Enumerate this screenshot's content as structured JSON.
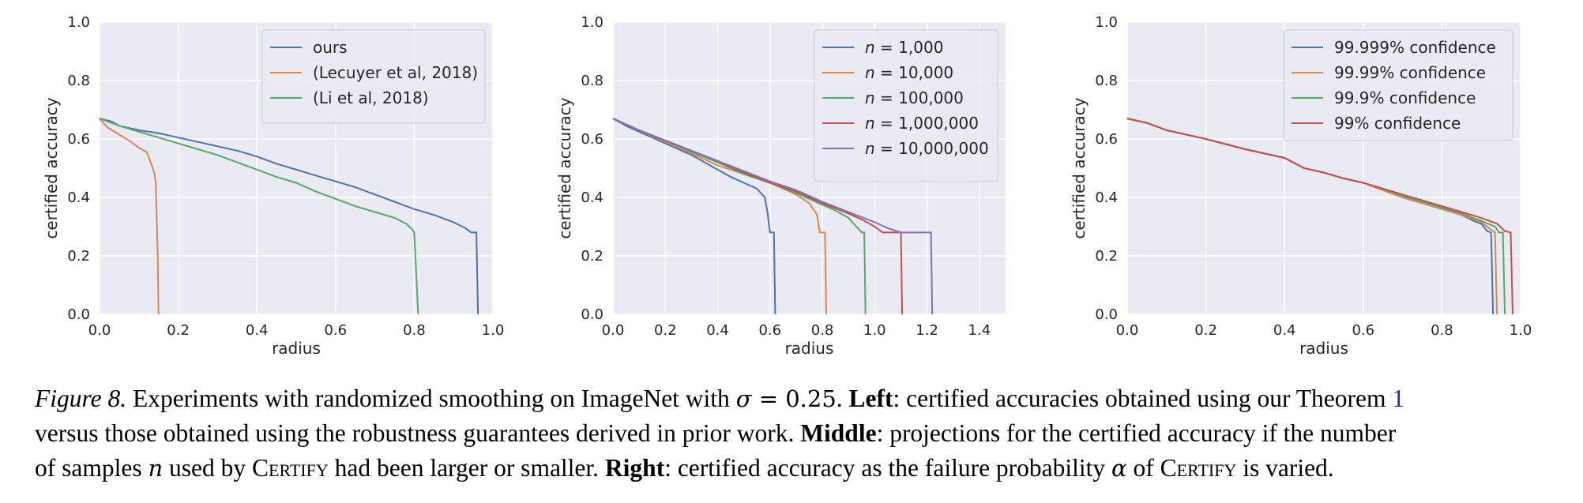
{
  "chart_data": [
    {
      "type": "line",
      "xlabel": "radius",
      "ylabel": "certified accuracy",
      "xlim": [
        0,
        1.0
      ],
      "ylim": [
        0,
        1.0
      ],
      "xticks": [
        0.0,
        0.2,
        0.4,
        0.6,
        0.8,
        1.0
      ],
      "xtick_labels": [
        "0.0",
        "0.2",
        "0.4",
        "0.6",
        "0.8",
        "1.0"
      ],
      "yticks": [
        0.0,
        0.2,
        0.4,
        0.6,
        0.8,
        1.0
      ],
      "ytick_labels": [
        "0.0",
        "0.2",
        "0.4",
        "0.6",
        "0.8",
        "1.0"
      ],
      "grid": true,
      "legend_position": "top-right",
      "series": [
        {
          "name": "ours",
          "color": "#4c72b0",
          "points": [
            [
              0,
              0.67
            ],
            [
              0.03,
              0.66
            ],
            [
              0.05,
              0.645
            ],
            [
              0.1,
              0.63
            ],
            [
              0.15,
              0.62
            ],
            [
              0.2,
              0.605
            ],
            [
              0.25,
              0.59
            ],
            [
              0.3,
              0.575
            ],
            [
              0.35,
              0.56
            ],
            [
              0.4,
              0.54
            ],
            [
              0.45,
              0.515
            ],
            [
              0.5,
              0.495
            ],
            [
              0.55,
              0.475
            ],
            [
              0.6,
              0.455
            ],
            [
              0.65,
              0.435
            ],
            [
              0.7,
              0.41
            ],
            [
              0.75,
              0.385
            ],
            [
              0.8,
              0.36
            ],
            [
              0.85,
              0.34
            ],
            [
              0.9,
              0.315
            ],
            [
              0.93,
              0.295
            ],
            [
              0.945,
              0.28
            ],
            [
              0.958,
              0.28
            ],
            [
              0.962,
              0.0
            ]
          ]
        },
        {
          "name": "(Lecuyer et al, 2018)",
          "color": "#dd8452",
          "points": [
            [
              0,
              0.67
            ],
            [
              0.02,
              0.64
            ],
            [
              0.05,
              0.615
            ],
            [
              0.08,
              0.59
            ],
            [
              0.1,
              0.57
            ],
            [
              0.12,
              0.555
            ],
            [
              0.13,
              0.52
            ],
            [
              0.14,
              0.48
            ],
            [
              0.143,
              0.45
            ],
            [
              0.148,
              0.2
            ],
            [
              0.15,
              0.0
            ]
          ]
        },
        {
          "name": "(Li et al, 2018)",
          "color": "#55a868",
          "points": [
            [
              0,
              0.67
            ],
            [
              0.05,
              0.645
            ],
            [
              0.1,
              0.625
            ],
            [
              0.15,
              0.605
            ],
            [
              0.2,
              0.585
            ],
            [
              0.25,
              0.565
            ],
            [
              0.3,
              0.545
            ],
            [
              0.35,
              0.52
            ],
            [
              0.4,
              0.495
            ],
            [
              0.45,
              0.47
            ],
            [
              0.5,
              0.45
            ],
            [
              0.55,
              0.42
            ],
            [
              0.6,
              0.395
            ],
            [
              0.65,
              0.37
            ],
            [
              0.7,
              0.35
            ],
            [
              0.75,
              0.33
            ],
            [
              0.78,
              0.31
            ],
            [
              0.795,
              0.29
            ],
            [
              0.8,
              0.28
            ],
            [
              0.81,
              0.0
            ]
          ]
        }
      ]
    },
    {
      "type": "line",
      "xlabel": "radius",
      "ylabel": "certified accuracy",
      "xlim": [
        0,
        1.5
      ],
      "ylim": [
        0,
        1.0
      ],
      "xticks": [
        0.0,
        0.2,
        0.4,
        0.6,
        0.8,
        1.0,
        1.2,
        1.4
      ],
      "xtick_labels": [
        "0.0",
        "0.2",
        "0.4",
        "0.6",
        "0.8",
        "1.0",
        "1.2",
        "1.4"
      ],
      "yticks": [
        0.0,
        0.2,
        0.4,
        0.6,
        0.8,
        1.0
      ],
      "ytick_labels": [
        "0.0",
        "0.2",
        "0.4",
        "0.6",
        "0.8",
        "1.0"
      ],
      "grid": true,
      "legend_position": "top-right",
      "series": [
        {
          "name_prefix": "n",
          "name_value": " = 1,000",
          "color": "#4c72b0",
          "points": [
            [
              0,
              0.67
            ],
            [
              0.05,
              0.645
            ],
            [
              0.1,
              0.625
            ],
            [
              0.15,
              0.605
            ],
            [
              0.2,
              0.585
            ],
            [
              0.25,
              0.565
            ],
            [
              0.3,
              0.545
            ],
            [
              0.35,
              0.52
            ],
            [
              0.4,
              0.495
            ],
            [
              0.45,
              0.47
            ],
            [
              0.5,
              0.45
            ],
            [
              0.55,
              0.43
            ],
            [
              0.58,
              0.4
            ],
            [
              0.59,
              0.35
            ],
            [
              0.6,
              0.28
            ],
            [
              0.615,
              0.28
            ],
            [
              0.62,
              0.0
            ]
          ]
        },
        {
          "name_prefix": "n",
          "name_value": " = 10,000",
          "color": "#dd8452",
          "points": [
            [
              0,
              0.67
            ],
            [
              0.1,
              0.63
            ],
            [
              0.2,
              0.59
            ],
            [
              0.3,
              0.55
            ],
            [
              0.4,
              0.51
            ],
            [
              0.5,
              0.48
            ],
            [
              0.6,
              0.45
            ],
            [
              0.65,
              0.43
            ],
            [
              0.7,
              0.41
            ],
            [
              0.75,
              0.38
            ],
            [
              0.78,
              0.34
            ],
            [
              0.79,
              0.28
            ],
            [
              0.81,
              0.28
            ],
            [
              0.815,
              0.0
            ]
          ]
        },
        {
          "name_prefix": "n",
          "name_value": " = 100,000",
          "color": "#55a868",
          "points": [
            [
              0,
              0.67
            ],
            [
              0.1,
              0.63
            ],
            [
              0.2,
              0.595
            ],
            [
              0.3,
              0.555
            ],
            [
              0.4,
              0.52
            ],
            [
              0.5,
              0.48
            ],
            [
              0.6,
              0.45
            ],
            [
              0.7,
              0.415
            ],
            [
              0.8,
              0.375
            ],
            [
              0.85,
              0.355
            ],
            [
              0.9,
              0.33
            ],
            [
              0.93,
              0.3
            ],
            [
              0.95,
              0.28
            ],
            [
              0.96,
              0.28
            ],
            [
              0.965,
              0.0
            ]
          ]
        },
        {
          "name_prefix": "n",
          "name_value": " = 1,000,000",
          "color": "#c44e52",
          "points": [
            [
              0,
              0.67
            ],
            [
              0.1,
              0.63
            ],
            [
              0.2,
              0.595
            ],
            [
              0.3,
              0.56
            ],
            [
              0.4,
              0.525
            ],
            [
              0.5,
              0.485
            ],
            [
              0.6,
              0.45
            ],
            [
              0.7,
              0.42
            ],
            [
              0.8,
              0.38
            ],
            [
              0.9,
              0.345
            ],
            [
              0.95,
              0.325
            ],
            [
              1.0,
              0.3
            ],
            [
              1.03,
              0.28
            ],
            [
              1.1,
              0.28
            ],
            [
              1.105,
              0.0
            ]
          ]
        },
        {
          "name_prefix": "n",
          "name_value": " = 10,000,000",
          "color": "#8172b3",
          "points": [
            [
              0,
              0.67
            ],
            [
              0.1,
              0.63
            ],
            [
              0.2,
              0.595
            ],
            [
              0.3,
              0.56
            ],
            [
              0.4,
              0.525
            ],
            [
              0.5,
              0.49
            ],
            [
              0.6,
              0.455
            ],
            [
              0.7,
              0.425
            ],
            [
              0.8,
              0.385
            ],
            [
              0.9,
              0.35
            ],
            [
              1.0,
              0.315
            ],
            [
              1.05,
              0.295
            ],
            [
              1.1,
              0.28
            ],
            [
              1.215,
              0.28
            ],
            [
              1.22,
              0.0
            ]
          ]
        }
      ]
    },
    {
      "type": "line",
      "xlabel": "radius",
      "ylabel": "certified accuracy",
      "xlim": [
        0,
        1.0
      ],
      "ylim": [
        0,
        1.0
      ],
      "xticks": [
        0.0,
        0.2,
        0.4,
        0.6,
        0.8,
        1.0
      ],
      "xtick_labels": [
        "0.0",
        "0.2",
        "0.4",
        "0.6",
        "0.8",
        "1.0"
      ],
      "yticks": [
        0.0,
        0.2,
        0.4,
        0.6,
        0.8,
        1.0
      ],
      "ytick_labels": [
        "0.0",
        "0.2",
        "0.4",
        "0.6",
        "0.8",
        "1.0"
      ],
      "grid": true,
      "legend_position": "top-right",
      "series": [
        {
          "name": "99.999% confidence",
          "color": "#4c72b0",
          "points": [
            [
              0,
              0.67
            ],
            [
              0.05,
              0.655
            ],
            [
              0.1,
              0.63
            ],
            [
              0.2,
              0.6
            ],
            [
              0.3,
              0.565
            ],
            [
              0.4,
              0.535
            ],
            [
              0.45,
              0.5
            ],
            [
              0.5,
              0.485
            ],
            [
              0.55,
              0.465
            ],
            [
              0.6,
              0.45
            ],
            [
              0.65,
              0.425
            ],
            [
              0.7,
              0.4
            ],
            [
              0.75,
              0.38
            ],
            [
              0.8,
              0.36
            ],
            [
              0.85,
              0.34
            ],
            [
              0.88,
              0.32
            ],
            [
              0.9,
              0.31
            ],
            [
              0.915,
              0.285
            ],
            [
              0.925,
              0.28
            ],
            [
              0.93,
              0.0
            ]
          ]
        },
        {
          "name": "99.99% confidence",
          "color": "#dd8452",
          "points": [
            [
              0,
              0.67
            ],
            [
              0.05,
              0.655
            ],
            [
              0.1,
              0.63
            ],
            [
              0.2,
              0.6
            ],
            [
              0.3,
              0.565
            ],
            [
              0.4,
              0.535
            ],
            [
              0.45,
              0.5
            ],
            [
              0.5,
              0.485
            ],
            [
              0.55,
              0.465
            ],
            [
              0.6,
              0.45
            ],
            [
              0.65,
              0.425
            ],
            [
              0.7,
              0.4
            ],
            [
              0.75,
              0.38
            ],
            [
              0.8,
              0.36
            ],
            [
              0.85,
              0.34
            ],
            [
              0.9,
              0.315
            ],
            [
              0.925,
              0.29
            ],
            [
              0.935,
              0.28
            ],
            [
              0.94,
              0.0
            ]
          ]
        },
        {
          "name": "99.9% confidence",
          "color": "#55a868",
          "points": [
            [
              0,
              0.67
            ],
            [
              0.05,
              0.655
            ],
            [
              0.1,
              0.63
            ],
            [
              0.2,
              0.6
            ],
            [
              0.3,
              0.565
            ],
            [
              0.4,
              0.535
            ],
            [
              0.45,
              0.5
            ],
            [
              0.5,
              0.485
            ],
            [
              0.55,
              0.465
            ],
            [
              0.6,
              0.45
            ],
            [
              0.65,
              0.43
            ],
            [
              0.7,
              0.405
            ],
            [
              0.75,
              0.385
            ],
            [
              0.8,
              0.365
            ],
            [
              0.85,
              0.345
            ],
            [
              0.9,
              0.32
            ],
            [
              0.935,
              0.3
            ],
            [
              0.945,
              0.28
            ],
            [
              0.955,
              0.28
            ],
            [
              0.96,
              0.0
            ]
          ]
        },
        {
          "name": "99% confidence",
          "color": "#c44e52",
          "points": [
            [
              0,
              0.67
            ],
            [
              0.05,
              0.655
            ],
            [
              0.1,
              0.63
            ],
            [
              0.2,
              0.6
            ],
            [
              0.3,
              0.565
            ],
            [
              0.4,
              0.535
            ],
            [
              0.45,
              0.5
            ],
            [
              0.5,
              0.485
            ],
            [
              0.55,
              0.465
            ],
            [
              0.6,
              0.45
            ],
            [
              0.65,
              0.43
            ],
            [
              0.7,
              0.41
            ],
            [
              0.75,
              0.39
            ],
            [
              0.8,
              0.37
            ],
            [
              0.85,
              0.35
            ],
            [
              0.9,
              0.33
            ],
            [
              0.94,
              0.31
            ],
            [
              0.96,
              0.285
            ],
            [
              0.975,
              0.28
            ],
            [
              0.98,
              0.0
            ]
          ]
        }
      ]
    }
  ],
  "caption": {
    "fig_label": "Figure 8.",
    "line1_a": " Experiments with randomized smoothing on ImageNet with ",
    "sigma": "σ",
    "sigma_eq": " = 0.25",
    "line1_b": ". ",
    "left_label": "Left",
    "line1_c": ": certified accuracies obtained using our Theorem ",
    "theorem_ref": "1",
    "line2_a": "versus those obtained using the robustness guarantees derived in prior work. ",
    "middle_label": "Middle",
    "line2_b": ": projections for the certified accuracy if the number",
    "line3_a": "of samples ",
    "n_symbol": "n",
    "line3_b": " used by ",
    "certify_1": "Certify",
    "line3_c": " had been larger or smaller. ",
    "right_label": "Right",
    "line3_d": ": certified accuracy as the failure probability ",
    "alpha": "α",
    "line3_e": " of ",
    "certify_2": "Certify",
    "line3_f": " is varied."
  }
}
